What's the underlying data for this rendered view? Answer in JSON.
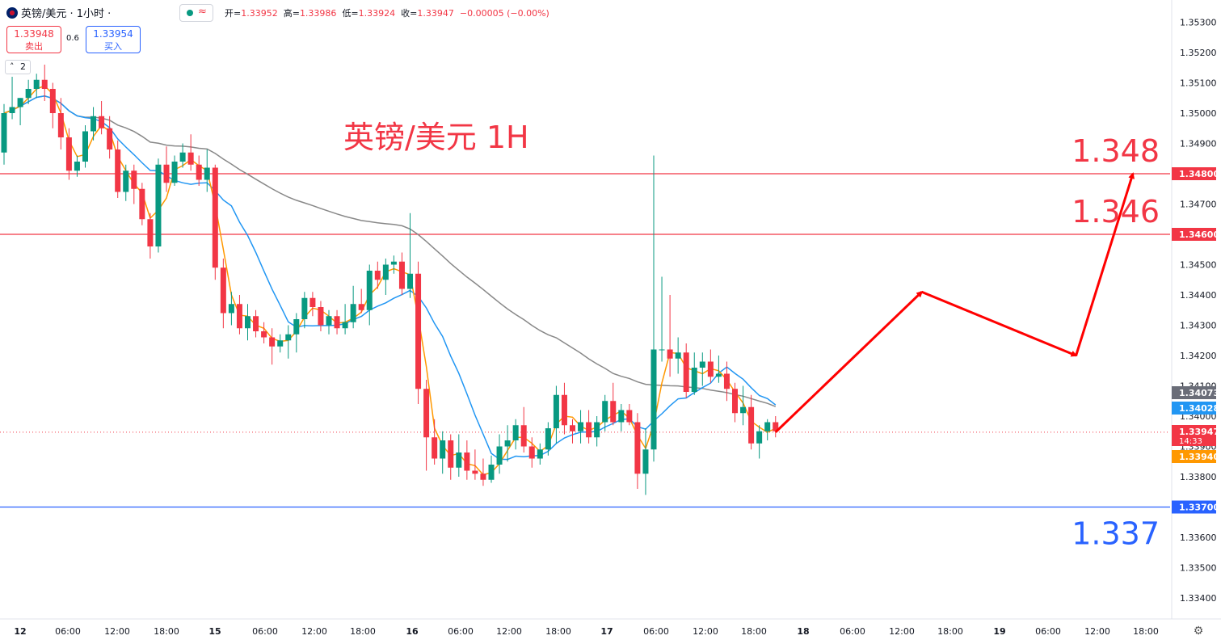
{
  "header": {
    "symbol": "英镑/美元 · 1小时 ·",
    "open_label": "开=",
    "open": "1.33952",
    "high_label": "高=",
    "high": "1.33986",
    "low_label": "低=",
    "low": "1.33924",
    "close_label": "收=",
    "close": "1.33947",
    "change": "−0.00005 (−0.00%)",
    "sell_price": "1.33948",
    "sell_label": "卖出",
    "buy_price": "1.33954",
    "buy_label": "买入",
    "spread": "0.6",
    "collapse_count": "2"
  },
  "chart_data": {
    "type": "candlestick",
    "title": "英镑/美元 1H",
    "y_ticks": [
      1.353,
      1.352,
      1.351,
      1.35,
      1.349,
      1.348,
      1.347,
      1.346,
      1.345,
      1.344,
      1.343,
      1.342,
      1.341,
      1.34,
      1.339,
      1.338,
      1.337,
      1.336,
      1.335,
      1.334
    ],
    "y_tick_labels": [
      "1.35300",
      "1.35200",
      "1.35100",
      "1.35000",
      "1.34900",
      "1.34800",
      "1.34700",
      "1.34600",
      "1.34500",
      "1.34400",
      "1.34300",
      "1.34200",
      "1.34100",
      "1.34000",
      "1.33900",
      "1.33800",
      "1.33700",
      "1.33600",
      "1.33500",
      "1.33400"
    ],
    "x_labels": [
      "12",
      "06:00",
      "12:00",
      "18:00",
      "15",
      "06:00",
      "12:00",
      "18:00",
      "16",
      "06:00",
      "12:00",
      "18:00",
      "17",
      "06:00",
      "12:00",
      "18:00",
      "18",
      "06:00",
      "12:00",
      "18:00",
      "19",
      "06:00",
      "12:00",
      "18:00"
    ],
    "levels": [
      {
        "value": 1.348,
        "label": "1.348",
        "axis_label": "1.34800",
        "color": "#f23645"
      },
      {
        "value": 1.346,
        "label": "1.346",
        "axis_label": "1.34600",
        "color": "#f23645"
      },
      {
        "value": 1.337,
        "label": "1.337",
        "axis_label": "1.33700",
        "color": "#2962ff"
      }
    ],
    "price_tags": [
      {
        "text": "1.34073",
        "value": 1.34073,
        "color": "#6a6d78"
      },
      {
        "text": "1.34028",
        "value": 1.34028,
        "color": "#2196f3"
      },
      {
        "text": "1.33947",
        "sub": "14:33",
        "value": 1.33947,
        "color": "#f23645"
      },
      {
        "text": "1.33940",
        "value": 1.3394,
        "color": "#ff9800"
      }
    ],
    "last_price": 1.33947,
    "candles": [
      [
        1.3487,
        1.3503,
        1.3483,
        1.35
      ],
      [
        1.35,
        1.3512,
        1.3498,
        1.3502
      ],
      [
        1.3502,
        1.3505,
        1.3496,
        1.3505
      ],
      [
        1.3505,
        1.3511,
        1.3503,
        1.3508
      ],
      [
        1.3508,
        1.3513,
        1.3505,
        1.3511
      ],
      [
        1.3511,
        1.3516,
        1.3504,
        1.3508
      ],
      [
        1.3508,
        1.351,
        1.3495,
        1.35
      ],
      [
        1.35,
        1.3505,
        1.3488,
        1.3492
      ],
      [
        1.3492,
        1.3495,
        1.3478,
        1.3481
      ],
      [
        1.3481,
        1.3486,
        1.3479,
        1.3484
      ],
      [
        1.3484,
        1.3496,
        1.3482,
        1.3494
      ],
      [
        1.3494,
        1.3502,
        1.3491,
        1.3499
      ],
      [
        1.3499,
        1.3504,
        1.3493,
        1.3495
      ],
      [
        1.3495,
        1.3499,
        1.3485,
        1.3488
      ],
      [
        1.3488,
        1.3491,
        1.3472,
        1.3474
      ],
      [
        1.3474,
        1.3483,
        1.3471,
        1.3481
      ],
      [
        1.3481,
        1.3483,
        1.347,
        1.3475
      ],
      [
        1.3475,
        1.3477,
        1.3463,
        1.3465
      ],
      [
        1.3465,
        1.3467,
        1.3452,
        1.3456
      ],
      [
        1.3456,
        1.3485,
        1.3454,
        1.3483
      ],
      [
        1.3483,
        1.3489,
        1.3474,
        1.3477
      ],
      [
        1.3477,
        1.3486,
        1.3476,
        1.3484
      ],
      [
        1.3484,
        1.349,
        1.3482,
        1.3487
      ],
      [
        1.3487,
        1.3493,
        1.3481,
        1.3483
      ],
      [
        1.3483,
        1.3486,
        1.3476,
        1.3478
      ],
      [
        1.3478,
        1.3488,
        1.3474,
        1.3482
      ],
      [
        1.3482,
        1.3483,
        1.3445,
        1.3449
      ],
      [
        1.3449,
        1.3452,
        1.3429,
        1.3434
      ],
      [
        1.3434,
        1.3441,
        1.343,
        1.3437
      ],
      [
        1.3437,
        1.344,
        1.3427,
        1.3429
      ],
      [
        1.3429,
        1.3437,
        1.3425,
        1.3433
      ],
      [
        1.3433,
        1.3435,
        1.3426,
        1.3428
      ],
      [
        1.3428,
        1.3431,
        1.3424,
        1.3426
      ],
      [
        1.3426,
        1.3429,
        1.3417,
        1.3423
      ],
      [
        1.3423,
        1.3427,
        1.3421,
        1.3425
      ],
      [
        1.3425,
        1.343,
        1.3419,
        1.3427
      ],
      [
        1.3427,
        1.3434,
        1.3421,
        1.3432
      ],
      [
        1.3432,
        1.3441,
        1.3429,
        1.3439
      ],
      [
        1.3439,
        1.3441,
        1.3433,
        1.3436
      ],
      [
        1.3436,
        1.3438,
        1.3428,
        1.343
      ],
      [
        1.343,
        1.3435,
        1.3427,
        1.3433
      ],
      [
        1.3433,
        1.3435,
        1.3427,
        1.3429
      ],
      [
        1.3429,
        1.3437,
        1.3427,
        1.3431
      ],
      [
        1.3431,
        1.3443,
        1.3429,
        1.3437
      ],
      [
        1.3437,
        1.3442,
        1.3434,
        1.3435
      ],
      [
        1.3435,
        1.345,
        1.343,
        1.3448
      ],
      [
        1.3448,
        1.3451,
        1.3442,
        1.3445
      ],
      [
        1.3445,
        1.3452,
        1.344,
        1.345
      ],
      [
        1.345,
        1.3453,
        1.3447,
        1.3451
      ],
      [
        1.3451,
        1.3454,
        1.344,
        1.3442
      ],
      [
        1.3442,
        1.3467,
        1.3439,
        1.3447
      ],
      [
        1.3447,
        1.3451,
        1.3404,
        1.3409
      ],
      [
        1.3409,
        1.3412,
        1.3382,
        1.3393
      ],
      [
        1.3393,
        1.3399,
        1.3384,
        1.3386
      ],
      [
        1.3386,
        1.3395,
        1.3381,
        1.3392
      ],
      [
        1.3392,
        1.3394,
        1.3379,
        1.3383
      ],
      [
        1.3383,
        1.3394,
        1.338,
        1.3388
      ],
      [
        1.3388,
        1.3392,
        1.3379,
        1.3382
      ],
      [
        1.3382,
        1.3389,
        1.3379,
        1.3381
      ],
      [
        1.3381,
        1.3386,
        1.3377,
        1.3379
      ],
      [
        1.3379,
        1.3387,
        1.3378,
        1.3384
      ],
      [
        1.3384,
        1.3394,
        1.3381,
        1.339
      ],
      [
        1.339,
        1.3397,
        1.3385,
        1.3392
      ],
      [
        1.3392,
        1.3399,
        1.3389,
        1.3397
      ],
      [
        1.3397,
        1.3403,
        1.3388,
        1.339
      ],
      [
        1.339,
        1.3393,
        1.3383,
        1.3386
      ],
      [
        1.3386,
        1.3391,
        1.3384,
        1.3389
      ],
      [
        1.3389,
        1.3398,
        1.3387,
        1.3396
      ],
      [
        1.3396,
        1.341,
        1.3391,
        1.3407
      ],
      [
        1.3407,
        1.3411,
        1.3394,
        1.3397
      ],
      [
        1.3397,
        1.3399,
        1.3391,
        1.3395
      ],
      [
        1.3395,
        1.3402,
        1.3391,
        1.3398
      ],
      [
        1.3398,
        1.3402,
        1.3391,
        1.3393
      ],
      [
        1.3393,
        1.34,
        1.339,
        1.3398
      ],
      [
        1.3398,
        1.3407,
        1.3395,
        1.3405
      ],
      [
        1.3405,
        1.3411,
        1.3397,
        1.3398
      ],
      [
        1.3398,
        1.3404,
        1.3395,
        1.3402
      ],
      [
        1.3402,
        1.3404,
        1.3397,
        1.3398
      ],
      [
        1.3398,
        1.3401,
        1.3376,
        1.3381
      ],
      [
        1.3381,
        1.3396,
        1.3374,
        1.3389
      ],
      [
        1.3389,
        1.3486,
        1.3385,
        1.3422
      ],
      [
        1.3422,
        1.3446,
        1.3418,
        1.3422
      ],
      [
        1.3422,
        1.344,
        1.3413,
        1.3419
      ],
      [
        1.3419,
        1.3426,
        1.3414,
        1.3421
      ],
      [
        1.3421,
        1.3424,
        1.3406,
        1.3408
      ],
      [
        1.3408,
        1.3421,
        1.3407,
        1.3416
      ],
      [
        1.3416,
        1.3421,
        1.341,
        1.3418
      ],
      [
        1.3418,
        1.3422,
        1.3411,
        1.3413
      ],
      [
        1.3413,
        1.342,
        1.3411,
        1.3414
      ],
      [
        1.3414,
        1.3418,
        1.3405,
        1.3409
      ],
      [
        1.3409,
        1.3411,
        1.3398,
        1.3401
      ],
      [
        1.3401,
        1.341,
        1.3397,
        1.3403
      ],
      [
        1.3403,
        1.3407,
        1.3389,
        1.3391
      ],
      [
        1.3391,
        1.3397,
        1.3386,
        1.3395
      ],
      [
        1.3395,
        1.3399,
        1.3392,
        1.3398
      ],
      [
        1.3398,
        1.34,
        1.3393,
        1.3395
      ]
    ],
    "projection": [
      {
        "x_bar": 95,
        "y": 1.33947
      },
      {
        "x_bar": 113,
        "y": 1.3441
      },
      {
        "x_bar": 132,
        "y": 1.342
      },
      {
        "x_bar": 139,
        "y": 1.348
      }
    ]
  }
}
